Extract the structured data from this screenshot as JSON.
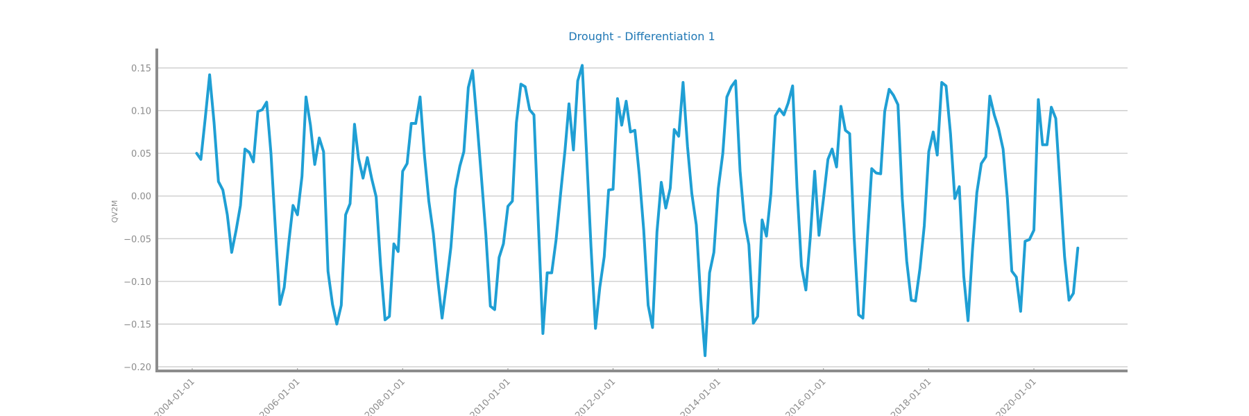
{
  "chart_data": {
    "type": "line",
    "title": "Drought - Differentiation 1",
    "xlabel": "",
    "ylabel": "QV2M",
    "ylim": [
      -0.205,
      0.17
    ],
    "grid": true,
    "legend": "none",
    "color": "#1f9fd4",
    "x_ticks": [
      "2004-01-01",
      "2006-01-01",
      "2008-01-01",
      "2010-01-01",
      "2012-01-01",
      "2014-01-01",
      "2016-01-01",
      "2018-01-01",
      "2020-01-01"
    ],
    "y_ticks": [
      0.15,
      0.1,
      0.05,
      0.0,
      -0.05,
      -0.1,
      -0.15,
      -0.2
    ],
    "y_tick_labels": [
      "0.15",
      "0.10",
      "0.05",
      "0.00",
      "−0.05",
      "−0.10",
      "−0.15",
      "−0.20"
    ],
    "series": [
      {
        "x_start": "2004-02-01",
        "x_step": "1 month",
        "values": [
          0.05,
          0.043,
          0.092,
          0.142,
          0.086,
          0.017,
          0.007,
          -0.022,
          -0.066,
          -0.04,
          -0.011,
          0.055,
          0.051,
          0.04,
          0.099,
          0.101,
          0.11,
          0.05,
          -0.04,
          -0.127,
          -0.107,
          -0.055,
          -0.011,
          -0.022,
          0.023,
          0.116,
          0.083,
          0.037,
          0.068,
          0.052,
          -0.088,
          -0.127,
          -0.15,
          -0.128,
          -0.022,
          -0.009,
          0.084,
          0.044,
          0.021,
          0.045,
          0.02,
          -0.001,
          -0.081,
          -0.145,
          -0.141,
          -0.056,
          -0.065,
          0.029,
          0.038,
          0.085,
          0.085,
          0.116,
          0.047,
          -0.006,
          -0.044,
          -0.098,
          -0.143,
          -0.102,
          -0.06,
          0.008,
          0.035,
          0.052,
          0.127,
          0.147,
          0.085,
          0.022,
          -0.045,
          -0.129,
          -0.133,
          -0.072,
          -0.056,
          -0.012,
          -0.006,
          0.086,
          0.131,
          0.128,
          0.101,
          0.095,
          -0.035,
          -0.161,
          -0.09,
          -0.09,
          -0.052,
          0.001,
          0.053,
          0.108,
          0.054,
          0.135,
          0.153,
          0.05,
          -0.059,
          -0.155,
          -0.107,
          -0.071,
          0.007,
          0.008,
          0.114,
          0.083,
          0.111,
          0.075,
          0.077,
          0.025,
          -0.04,
          -0.128,
          -0.154,
          -0.042,
          0.016,
          -0.014,
          0.009,
          0.078,
          0.07,
          0.133,
          0.058,
          0.003,
          -0.034,
          -0.121,
          -0.187,
          -0.09,
          -0.066,
          0.009,
          0.05,
          0.116,
          0.128,
          0.135,
          0.029,
          -0.029,
          -0.057,
          -0.149,
          -0.141,
          -0.028,
          -0.047,
          0.003,
          0.094,
          0.102,
          0.095,
          0.109,
          0.129,
          0.01,
          -0.082,
          -0.11,
          -0.049,
          0.029,
          -0.046,
          -0.003,
          0.043,
          0.055,
          0.034,
          0.105,
          0.077,
          0.073,
          -0.049,
          -0.139,
          -0.143,
          -0.048,
          0.032,
          0.027,
          0.026,
          0.099,
          0.125,
          0.118,
          0.107,
          -0.003,
          -0.076,
          -0.122,
          -0.123,
          -0.085,
          -0.035,
          0.052,
          0.075,
          0.048,
          0.133,
          0.129,
          0.073,
          -0.003,
          0.011,
          -0.094,
          -0.146,
          -0.062,
          0.004,
          0.038,
          0.046,
          0.117,
          0.095,
          0.079,
          0.055,
          -0.003,
          -0.088,
          -0.095,
          -0.135,
          -0.053,
          -0.051,
          -0.04,
          0.113,
          0.06,
          0.06,
          0.104,
          0.091,
          0.011,
          -0.071,
          -0.122,
          -0.114,
          -0.061
        ]
      }
    ]
  }
}
